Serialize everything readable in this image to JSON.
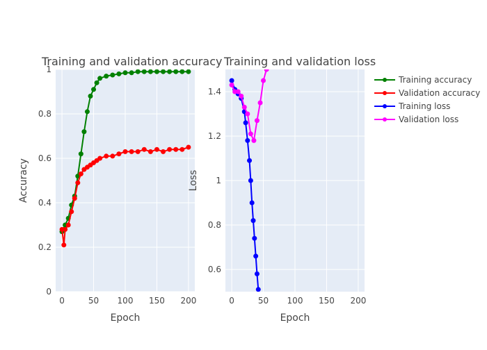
{
  "chart_data": [
    {
      "type": "line",
      "title": "Training and validation accuracy",
      "xlabel": "Epoch",
      "ylabel": "Accuracy",
      "xlim": [
        -10,
        210
      ],
      "ylim": [
        0,
        1
      ],
      "xticks": [
        0,
        50,
        100,
        150,
        200
      ],
      "yticks": [
        0,
        0.2,
        0.4,
        0.6,
        0.8,
        1
      ],
      "ytick_labels": [
        "0",
        "0.2",
        "0.4",
        "0.6",
        "0.8",
        "1"
      ],
      "grid": true,
      "series": [
        {
          "name": "Training accuracy",
          "color": "#008000",
          "x": [
            0,
            5,
            10,
            15,
            20,
            25,
            30,
            35,
            40,
            45,
            50,
            55,
            60,
            70,
            80,
            90,
            100,
            110,
            120,
            130,
            140,
            150,
            160,
            170,
            180,
            190,
            200
          ],
          "y": [
            0.27,
            0.3,
            0.33,
            0.39,
            0.43,
            0.52,
            0.62,
            0.72,
            0.81,
            0.88,
            0.91,
            0.94,
            0.96,
            0.97,
            0.975,
            0.98,
            0.985,
            0.985,
            0.99,
            0.99,
            0.99,
            0.99,
            0.99,
            0.99,
            0.99,
            0.99,
            0.99
          ]
        },
        {
          "name": "Validation accuracy",
          "color": "#ff0000",
          "x": [
            0,
            3,
            5,
            10,
            15,
            20,
            25,
            30,
            35,
            40,
            45,
            50,
            55,
            60,
            70,
            80,
            90,
            100,
            110,
            120,
            130,
            140,
            150,
            160,
            170,
            180,
            190,
            200
          ],
          "y": [
            0.28,
            0.21,
            0.28,
            0.3,
            0.36,
            0.42,
            0.49,
            0.53,
            0.55,
            0.56,
            0.57,
            0.58,
            0.59,
            0.6,
            0.61,
            0.61,
            0.62,
            0.63,
            0.63,
            0.63,
            0.64,
            0.63,
            0.64,
            0.63,
            0.64,
            0.64,
            0.64,
            0.65
          ]
        }
      ]
    },
    {
      "type": "line",
      "title": "Training and validation loss",
      "xlabel": "Epoch",
      "ylabel": "Loss",
      "xlim": [
        -10,
        210
      ],
      "ylim": [
        0.5,
        1.5
      ],
      "xticks": [
        0,
        50,
        100,
        150,
        200
      ],
      "yticks": [
        0.6,
        0.8,
        1,
        1.2,
        1.4
      ],
      "ytick_labels": [
        "0.6",
        "0.8",
        "1",
        "1.2",
        "1.4"
      ],
      "grid": true,
      "series": [
        {
          "name": "Training loss",
          "color": "#0000ff",
          "x": [
            0,
            5,
            10,
            15,
            20,
            22,
            25,
            28,
            30,
            32,
            34,
            36,
            38,
            40,
            42
          ],
          "y": [
            1.45,
            1.41,
            1.39,
            1.37,
            1.31,
            1.26,
            1.18,
            1.09,
            1.0,
            0.9,
            0.82,
            0.74,
            0.66,
            0.58,
            0.51
          ]
        },
        {
          "name": "Validation loss",
          "color": "#ff00ff",
          "x": [
            0,
            5,
            10,
            15,
            20,
            25,
            30,
            35,
            40,
            45,
            50,
            55
          ],
          "y": [
            1.43,
            1.4,
            1.4,
            1.38,
            1.33,
            1.3,
            1.21,
            1.18,
            1.27,
            1.35,
            1.45,
            1.5
          ]
        }
      ]
    }
  ],
  "legend": {
    "items": [
      {
        "label": "Training accuracy",
        "color": "#008000"
      },
      {
        "label": "Validation accuracy",
        "color": "#ff0000"
      },
      {
        "label": "Training loss",
        "color": "#0000ff"
      },
      {
        "label": "Validation loss",
        "color": "#ff00ff"
      }
    ]
  }
}
